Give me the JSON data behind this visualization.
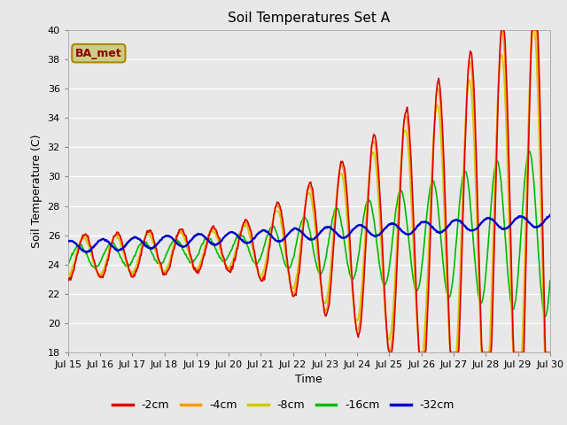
{
  "title": "Soil Temperatures Set A",
  "xlabel": "Time",
  "ylabel": "Soil Temperature (C)",
  "ylim": [
    18,
    40
  ],
  "yticks": [
    18,
    20,
    22,
    24,
    26,
    28,
    30,
    32,
    34,
    36,
    38,
    40
  ],
  "xtick_labels": [
    "Jul 15",
    "Jul 16",
    "Jul 17",
    "Jul 18",
    "Jul 19",
    "Jul 20",
    "Jul 21",
    "Jul 22",
    "Jul 23",
    "Jul 24",
    "Jul 25",
    "Jul 26",
    "Jul 27",
    "Jul 28",
    "Jul 29",
    "Jul 30"
  ],
  "colors": {
    "-2cm": "#dd0000",
    "-4cm": "#ff9900",
    "-8cm": "#cccc00",
    "-16cm": "#00bb00",
    "-32cm": "#0000cc"
  },
  "annotation_text": "BA_met",
  "annotation_fgcolor": "#880000",
  "annotation_bgcolor": "#cccc88",
  "annotation_edgecolor": "#aa8800",
  "fig_bg": "#e8e8e8",
  "axes_bg": "#e8e8e8",
  "grid_color": "#ffffff",
  "line_width": 1.2
}
